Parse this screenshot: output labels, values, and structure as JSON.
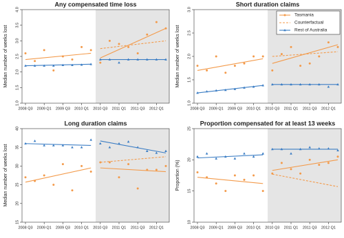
{
  "chart_data": [
    {
      "type": "line",
      "title": "Any compensated time loss",
      "ylabel": "Median number of weeks lost",
      "categories": [
        "2008 Q3",
        null,
        "2009 Q1",
        null,
        "2009 Q3",
        null,
        "2010 Q1",
        null,
        "2010 Q3",
        null,
        "2011 Q1",
        null,
        "2011 Q3",
        null,
        "2012 Q1",
        null
      ],
      "ylim": [
        1,
        4
      ],
      "yticks": [
        {
          "value": 1,
          "label": "1.0"
        },
        {
          "value": 1.5,
          "label": "1.5"
        },
        {
          "value": 2,
          "label": "2.0"
        },
        {
          "value": 2.5,
          "label": "2.5"
        },
        {
          "value": 3,
          "label": "3.0"
        },
        {
          "value": 3.5,
          "label": "3.5"
        },
        {
          "value": 4,
          "label": "4.0"
        }
      ],
      "series": [
        {
          "color": "#f39a4a",
          "marker": "circle",
          "values": [
            2.6,
            2.35,
            2.7,
            2.05,
            2.5,
            2.4,
            2.8,
            2.7,
            2.3,
            3.0,
            2.9,
            2.8,
            2.6,
            3.2,
            3.6,
            3.4
          ],
          "trend_pre": [
            2.4,
            2.6
          ],
          "trend_post": [
            2.45,
            3.4
          ]
        },
        {
          "color": "#f39a4a",
          "dashed": true,
          "trend_post": [
            2.75,
            3.0
          ]
        },
        {
          "color": "#3b7dc4",
          "marker": "triangle",
          "values": [
            2.2,
            2.2,
            2.2,
            2.2,
            2.22,
            2.22,
            2.23,
            2.25,
            2.4,
            2.4,
            2.3,
            2.4,
            2.4,
            2.4,
            2.4,
            2.4
          ],
          "trend_pre": [
            2.2,
            2.25
          ],
          "trend_post": [
            2.4,
            2.4
          ]
        }
      ]
    },
    {
      "type": "line",
      "title": "Short duration claims",
      "ylabel": "Median number of weeks lost",
      "legend": "top-right",
      "categories": [
        "2008 Q3",
        null,
        "2009 Q1",
        null,
        "2009 Q3",
        null,
        "2010 Q1",
        null,
        "2010 Q3",
        null,
        "2011 Q1",
        null,
        "2011 Q3",
        null,
        "2012 Q1",
        null
      ],
      "ylim": [
        1,
        3
      ],
      "yticks": [
        {
          "value": 1,
          "label": "1.0"
        },
        {
          "value": 1.5,
          "label": "1.5"
        },
        {
          "value": 2,
          "label": "2.0"
        },
        {
          "value": 2.5,
          "label": "2.5"
        },
        {
          "value": 3,
          "label": "3.0"
        }
      ],
      "series": [
        {
          "name": "Tasmania",
          "color": "#f39a4a",
          "marker": "circle",
          "values": [
            1.8,
            1.7,
            2.0,
            1.65,
            1.8,
            1.85,
            2.0,
            2.0,
            1.7,
            2.05,
            2.2,
            1.8,
            1.85,
            2.0,
            2.3,
            2.2
          ],
          "trend_pre": [
            1.7,
            1.95
          ],
          "trend_post": [
            1.85,
            2.25
          ]
        },
        {
          "name": "Counterfactual",
          "color": "#f39a4a",
          "dashed": true,
          "trend_post": [
            2.0,
            2.1
          ]
        },
        {
          "name": "Rest of Australia",
          "color": "#3b7dc4",
          "marker": "triangle",
          "values": [
            1.22,
            1.25,
            1.27,
            1.28,
            1.3,
            1.33,
            1.35,
            1.38,
            1.4,
            1.4,
            1.4,
            1.4,
            1.4,
            1.4,
            1.35,
            1.4
          ],
          "trend_pre": [
            1.22,
            1.38
          ],
          "trend_post": [
            1.4,
            1.4
          ]
        }
      ]
    },
    {
      "type": "line",
      "title": "Long duration claims",
      "ylabel": "Median number of weeks lost",
      "categories": [
        "2008 Q3",
        null,
        "2009 Q1",
        null,
        "2009 Q3",
        null,
        "2010 Q1",
        null,
        "2010 Q3",
        null,
        "2011 Q1",
        null,
        "2011 Q3",
        null,
        "2012 Q1",
        null
      ],
      "ylim": [
        15,
        40
      ],
      "yticks": [
        15,
        20,
        25,
        30,
        35,
        40
      ],
      "series": [
        {
          "color": "#f39a4a",
          "marker": "circle",
          "values": [
            27,
            26,
            27.5,
            25,
            30.5,
            23.5,
            30,
            28.5,
            31,
            31,
            27,
            30.5,
            24,
            29,
            29,
            30
          ],
          "trend_pre": [
            25.7,
            29.5
          ],
          "trend_post": [
            29.5,
            28.5
          ]
        },
        {
          "color": "#f39a4a",
          "dashed": true,
          "trend_post": [
            31,
            32.5
          ]
        },
        {
          "color": "#3b7dc4",
          "marker": "triangle",
          "values": [
            36,
            36.7,
            35.5,
            35.5,
            35.5,
            35,
            35,
            37,
            36,
            35,
            36,
            36.5,
            35,
            34,
            33.5,
            34
          ],
          "trend_pre": [
            36,
            35.5
          ],
          "trend_post": [
            36.7,
            33.5
          ]
        }
      ]
    },
    {
      "type": "line",
      "title": "Proportion compensated for at least 13 weeks",
      "ylabel": "Proportion (%)",
      "categories": [
        "2008 Q3",
        null,
        "2009 Q1",
        null,
        "2009 Q3",
        null,
        "2010 Q1",
        null,
        "2010 Q3",
        null,
        "2011 Q1",
        null,
        "2011 Q3",
        null,
        "2012 Q1",
        null
      ],
      "ylim": [
        10,
        25
      ],
      "yticks": [
        10,
        15,
        20,
        25
      ],
      "series": [
        {
          "color": "#f39a4a",
          "marker": "circle",
          "values": [
            18,
            17.2,
            16.2,
            15,
            17.5,
            16.8,
            17.5,
            15,
            17.8,
            19.5,
            18.5,
            17.8,
            20,
            19.2,
            19.5,
            20.5
          ],
          "trend_pre": [
            17.2,
            16.2
          ],
          "trend_post": [
            18.3,
            20
          ]
        },
        {
          "color": "#f39a4a",
          "dashed": true,
          "trend_post": [
            17.7,
            15.7
          ]
        },
        {
          "color": "#3b7dc4",
          "marker": "triangle",
          "values": [
            20.5,
            21,
            20.2,
            20.5,
            20.2,
            21,
            20.5,
            21,
            21.7,
            21.7,
            21,
            21.7,
            22,
            21.8,
            21.8,
            21.5
          ],
          "trend_pre": [
            20.3,
            20.8
          ],
          "trend_post": [
            21.7,
            21.7
          ]
        }
      ]
    }
  ]
}
